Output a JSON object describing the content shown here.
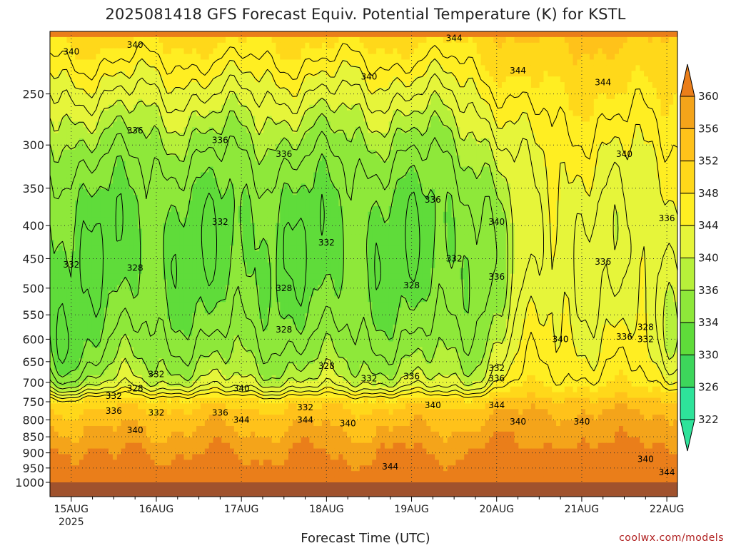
{
  "title": "2025081418 GFS Forecast Equiv. Potential Temperature (K) for KSTL",
  "credit": "coolwx.com/models",
  "chart_data": {
    "type": "heatmap",
    "title": "2025081418 GFS Forecast Equiv. Potential Temperature (K) for KSTL",
    "xlabel": "Forecast Time (UTC)",
    "ylabel": "",
    "y_axis": {
      "type": "pressure_log",
      "range": [
        1000,
        200
      ],
      "ticks": [
        250,
        300,
        350,
        400,
        450,
        500,
        550,
        600,
        650,
        700,
        750,
        800,
        850,
        900,
        950,
        1000
      ]
    },
    "x_axis": {
      "range_days": [
        "2025-08-14 18Z",
        "2025-08-22 06Z"
      ],
      "ticks": [
        "15AUG",
        "16AUG",
        "17AUG",
        "18AUG",
        "19AUG",
        "20AUG",
        "21AUG",
        "22AUG"
      ],
      "tick_sublabel": "2025"
    },
    "colorbar": {
      "levels": [
        322,
        326,
        330,
        334,
        336,
        340,
        344,
        348,
        352,
        356,
        360
      ],
      "colors": [
        "#2ee39a",
        "#3dd65b",
        "#5fdc3a",
        "#8ee83a",
        "#b7f03a",
        "#e6f53a",
        "#ffee22",
        "#ffd81a",
        "#ffc21a",
        "#f4a41a",
        "#ea7e1a"
      ],
      "extend": "both"
    },
    "contour_labels": [
      {
        "value": 340,
        "x": "15AUG",
        "p": 215
      },
      {
        "value": 340,
        "x": "15AUG 18Z",
        "p": 210
      },
      {
        "value": 344,
        "x": "19AUG 12Z",
        "p": 205
      },
      {
        "value": 344,
        "x": "20AUG 06Z",
        "p": 230
      },
      {
        "value": 344,
        "x": "21AUG 06Z",
        "p": 240
      },
      {
        "value": 340,
        "x": "18AUG 12Z",
        "p": 235
      },
      {
        "value": 336,
        "x": "15AUG 18Z",
        "p": 285
      },
      {
        "value": 336,
        "x": "16AUG 18Z",
        "p": 295
      },
      {
        "value": 336,
        "x": "17AUG 12Z",
        "p": 310
      },
      {
        "value": 340,
        "x": "21AUG 12Z",
        "p": 310
      },
      {
        "value": 336,
        "x": "19AUG 06Z",
        "p": 365
      },
      {
        "value": 340,
        "x": "20AUG",
        "p": 395
      },
      {
        "value": 336,
        "x": "22AUG",
        "p": 390
      },
      {
        "value": 332,
        "x": "16AUG 18Z",
        "p": 395
      },
      {
        "value": 332,
        "x": "18AUG",
        "p": 425
      },
      {
        "value": 332,
        "x": "19AUG 12Z",
        "p": 450
      },
      {
        "value": 336,
        "x": "21AUG 06Z",
        "p": 455
      },
      {
        "value": 332,
        "x": "15AUG",
        "p": 460
      },
      {
        "value": 328,
        "x": "15AUG 18Z",
        "p": 465
      },
      {
        "value": 336,
        "x": "20AUG",
        "p": 480
      },
      {
        "value": 328,
        "x": "17AUG 12Z",
        "p": 500
      },
      {
        "value": 328,
        "x": "19AUG",
        "p": 495
      },
      {
        "value": 328,
        "x": "17AUG 12Z",
        "p": 580
      },
      {
        "value": 328,
        "x": "21AUG 18Z",
        "p": 575
      },
      {
        "value": 336,
        "x": "21AUG 12Z",
        "p": 595
      },
      {
        "value": 332,
        "x": "21AUG 18Z",
        "p": 600
      },
      {
        "value": 340,
        "x": "20AUG 18Z",
        "p": 600
      },
      {
        "value": 328,
        "x": "18AUG",
        "p": 660
      },
      {
        "value": 332,
        "x": "20AUG",
        "p": 665
      },
      {
        "value": 336,
        "x": "20AUG",
        "p": 690
      },
      {
        "value": 332,
        "x": "16AUG",
        "p": 680
      },
      {
        "value": 336,
        "x": "19AUG",
        "p": 685
      },
      {
        "value": 332,
        "x": "18AUG 12Z",
        "p": 690
      },
      {
        "value": 340,
        "x": "17AUG",
        "p": 715
      },
      {
        "value": 328,
        "x": "15AUG 18Z",
        "p": 715
      },
      {
        "value": 332,
        "x": "15AUG 12Z",
        "p": 735
      },
      {
        "value": 332,
        "x": "17AUG 18Z",
        "p": 765
      },
      {
        "value": 340,
        "x": "19AUG 06Z",
        "p": 760
      },
      {
        "value": 344,
        "x": "20AUG",
        "p": 760
      },
      {
        "value": 336,
        "x": "15AUG 12Z",
        "p": 775
      },
      {
        "value": 332,
        "x": "16AUG",
        "p": 780
      },
      {
        "value": 336,
        "x": "16AUG 18Z",
        "p": 780
      },
      {
        "value": 344,
        "x": "17AUG",
        "p": 800
      },
      {
        "value": 344,
        "x": "17AUG 18Z",
        "p": 800
      },
      {
        "value": 340,
        "x": "18AUG 06Z",
        "p": 810
      },
      {
        "value": 340,
        "x": "20AUG 06Z",
        "p": 805
      },
      {
        "value": 340,
        "x": "21AUG",
        "p": 805
      },
      {
        "value": 340,
        "x": "15AUG 18Z",
        "p": 830
      },
      {
        "value": 344,
        "x": "18AUG 18Z",
        "p": 945
      },
      {
        "value": 340,
        "x": "21AUG 18Z",
        "p": 920
      },
      {
        "value": 344,
        "x": "22AUG",
        "p": 965
      }
    ]
  }
}
